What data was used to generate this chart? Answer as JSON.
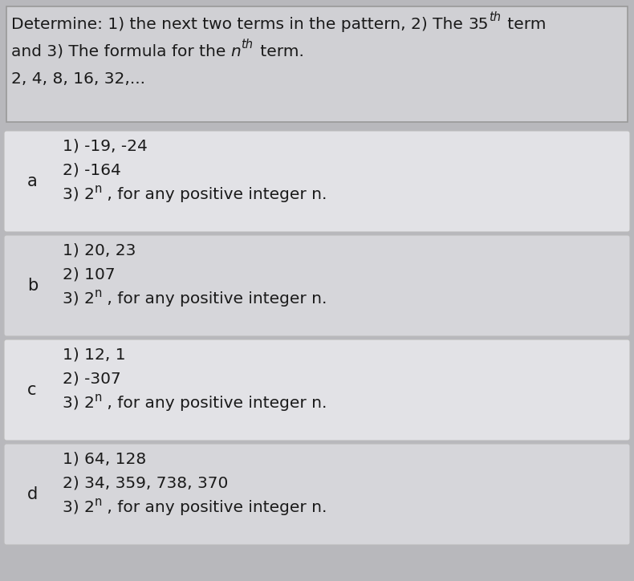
{
  "options": [
    {
      "label": "a",
      "line1": "1) -19, -24",
      "line2": "2) -164",
      "line3_base": "3) 2",
      "line3_super": "n",
      "line3_rest": " , for any positive integer n.",
      "bg": "#e2e2e6"
    },
    {
      "label": "b",
      "line1": "1) 20, 23",
      "line2": "2) 107",
      "line3_base": "3) 2",
      "line3_super": "n",
      "line3_rest": " , for any positive integer n.",
      "bg": "#d6d6da"
    },
    {
      "label": "c",
      "line1": "1) 12, 1",
      "line2": "2) -307",
      "line3_base": "3) 2",
      "line3_super": "n",
      "line3_rest": " , for any positive integer n.",
      "bg": "#e2e2e6"
    },
    {
      "label": "d",
      "line1": "1) 64, 128",
      "line2": "2) 34, 359, 738, 370",
      "line3_base": "3) 2",
      "line3_super": "n",
      "line3_rest": " , for any positive integer n.",
      "bg": "#d6d6da"
    }
  ],
  "header_bg": "#d0d0d4",
  "fig_bg": "#b8b8bc",
  "text_color": "#1a1a1a",
  "font_size": 14.5,
  "label_font_size": 15,
  "header_line1_prefix": "Determine: 1) the next two terms in the pattern, 2) The ",
  "header_35": "35",
  "header_th1": "th",
  "header_term": " term",
  "header_line2_prefix": "and 3) The formula for the ",
  "header_n": "n",
  "header_th2": "th",
  "header_term2": " term.",
  "header_line3": "2, 4, 8, 16, 32,..."
}
